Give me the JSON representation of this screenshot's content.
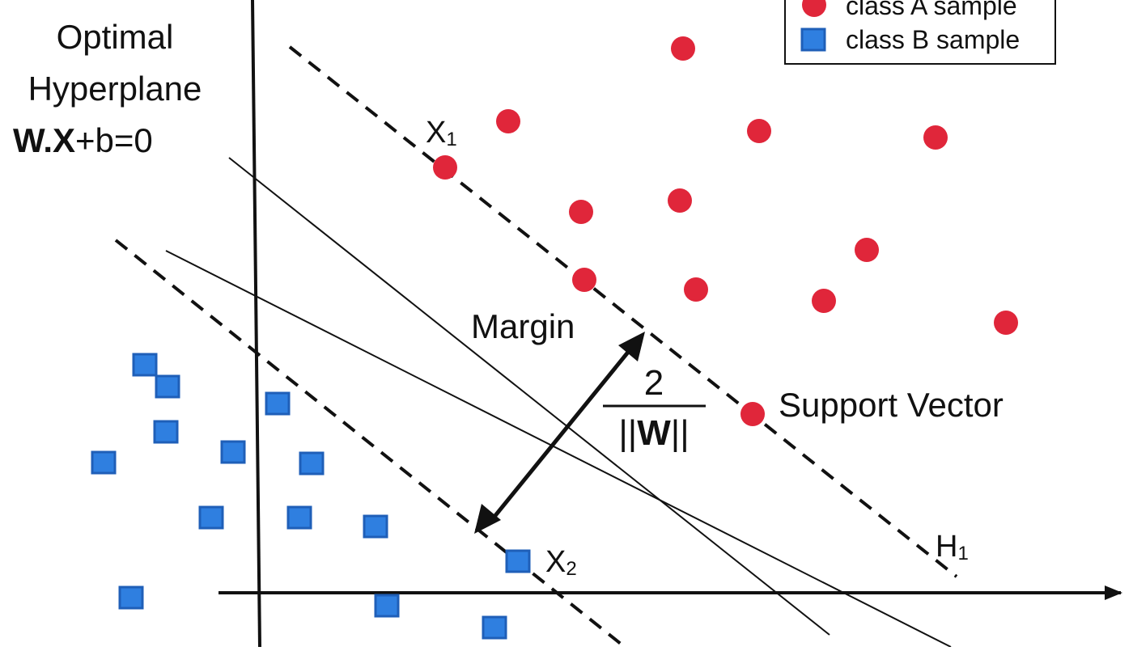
{
  "colors": {
    "class_a": "#e0263a",
    "class_b": "#2f7fe0",
    "class_b_stroke": "#1f5fb8",
    "ink": "#111111"
  },
  "legend": {
    "class_a_label": "class A sample",
    "class_b_label": "class B sample"
  },
  "labels": {
    "hyperplane_line1": "Optimal",
    "hyperplane_line2": "Hyperplane",
    "hyperplane_eq_bold": "W.X",
    "hyperplane_eq_rest": "+b=0",
    "x1": "X",
    "x1_sub": "1",
    "x2": "X",
    "x2_sub": "2",
    "h1": "H",
    "h1_sub": "1",
    "margin": "Margin",
    "margin_numerator": "2",
    "margin_denominator_left": "||",
    "margin_denominator_bold": "W",
    "margin_denominator_right": "||",
    "support_vector": "Support Vector"
  }
}
